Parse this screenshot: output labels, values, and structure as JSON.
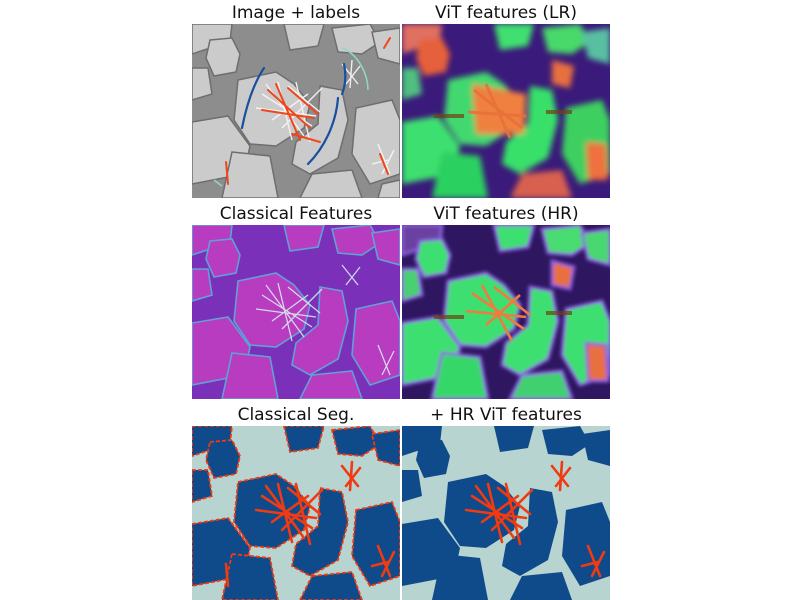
{
  "panels": [
    {
      "title": "Image + labels"
    },
    {
      "title": "ViT features (LR)"
    },
    {
      "title": "Classical Features"
    },
    {
      "title": "ViT features (HR)"
    },
    {
      "title": "Classical Seg."
    },
    {
      "title": "+ HR ViT features"
    }
  ],
  "colors": {
    "background_gray": "#8a8a8a",
    "particle_gray": "#cfcfcf",
    "seg_background": "#b8d4d0",
    "seg_blue": "#0f4a8a",
    "seg_red": "#f03a12",
    "vit_green": "#3ee06a",
    "vit_purple": "#3a1a7a",
    "vit_orange": "#f07a40",
    "classical_purple": "#8a2aa0",
    "classical_magenta": "#c040c8"
  }
}
